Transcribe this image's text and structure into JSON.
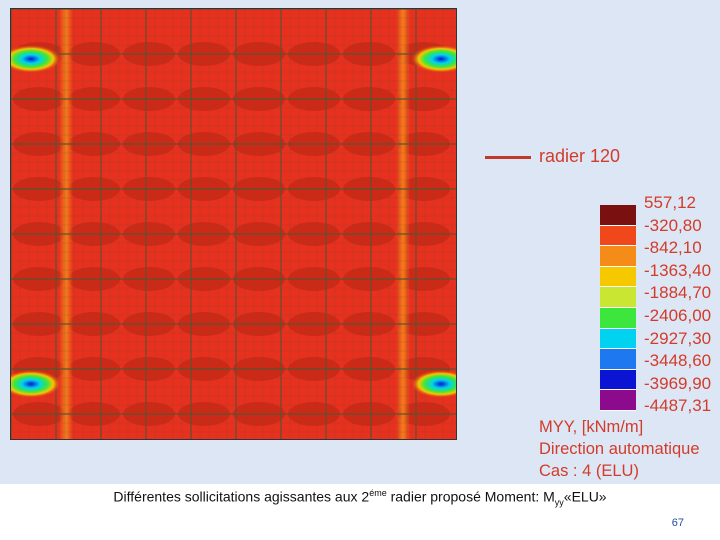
{
  "legend": {
    "line_label": "radier 120",
    "line_color": "#c0392b",
    "scale_values": [
      "557,12",
      "-320,80",
      "-842,10",
      "-1363,40",
      "-1884,70",
      "-2406,00",
      "-2927,30",
      "-3448,60",
      "-3969,90",
      "-4487,31"
    ],
    "scale_colors": [
      "#7b1010",
      "#f0481a",
      "#f58c1a",
      "#f5c800",
      "#c8e632",
      "#3ce63c",
      "#00d2f0",
      "#1e78f0",
      "#0a14d2",
      "#8c0a8c"
    ],
    "quantity": "MYY, [kNm/m]",
    "direction": "Direction automatique",
    "case": "Cas : 4 (ELU)"
  },
  "caption": {
    "pre": "Différentes sollicitations agissantes aux 2",
    "sup": "éme",
    "mid": " radier proposé Moment: M",
    "sub": "yy",
    "post": "«ELU»"
  },
  "page_number": "67",
  "colors": {
    "plot_base": "#e8301e",
    "plot_band": "#b82412",
    "grid_line": "#555533",
    "text_accent": "#d23c2a"
  }
}
